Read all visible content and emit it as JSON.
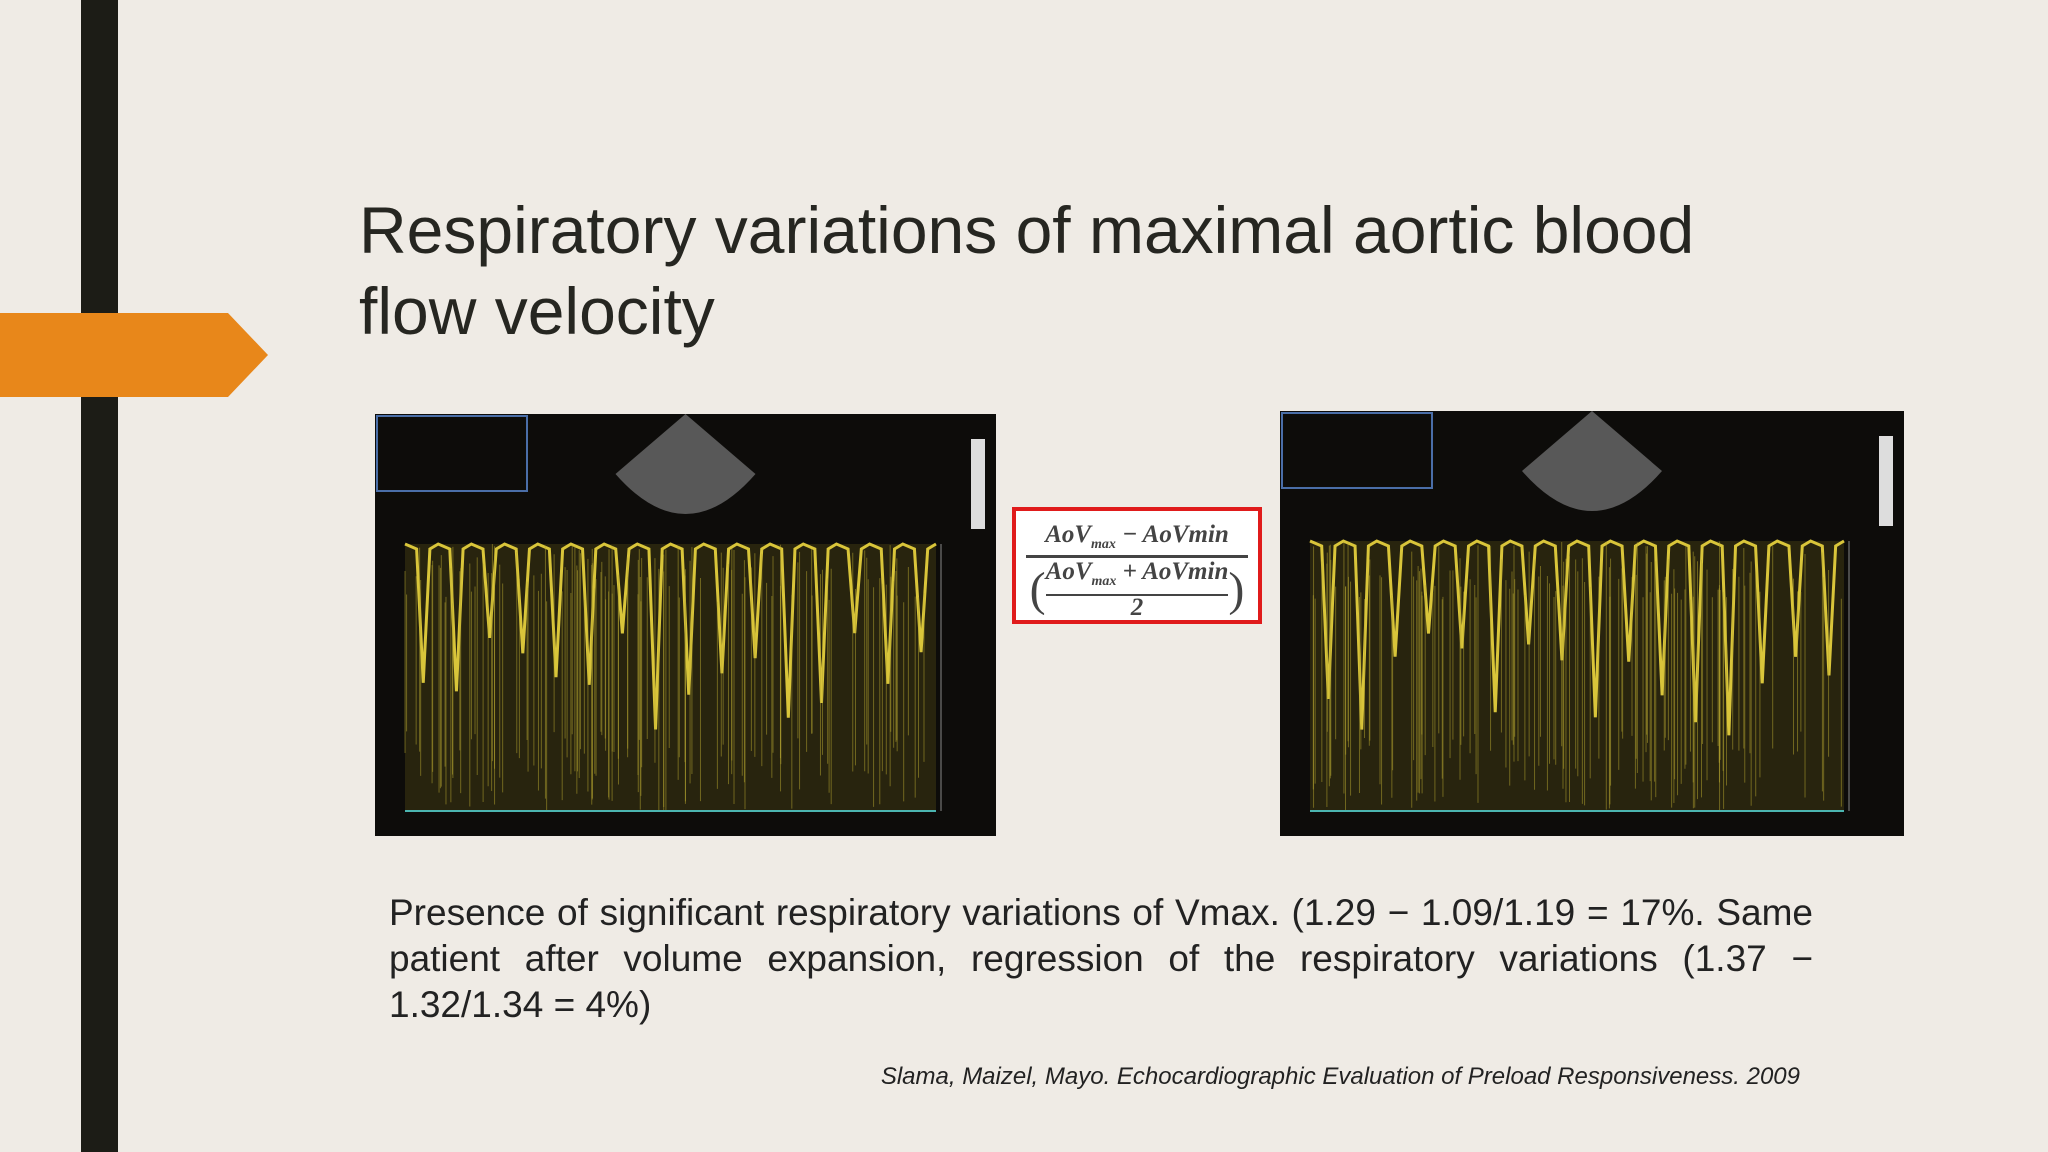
{
  "slide": {
    "title_lines": [
      "Respiratory variations of maximal aortic blood",
      "flow velocity"
    ],
    "formula": {
      "numerator": {
        "left": "AoV",
        "left_sub": "max",
        "right": "− AoVmin"
      },
      "denominator": {
        "left": "AoV",
        "left_sub": "max",
        "right": "+ AoVmin",
        "divisor": "2"
      }
    },
    "body": "Presence of significant respiratory variations of Vmax. (1.29 − 1.09/1.19 = 17%. Same patient after volume expansion, regression of the respiratory variations  (1.37 − 1.32/1.34 = 4%)",
    "citation": "Slama, Maizel, Mayo. Echocardiographic Evaluation of Preload Responsiveness. 2009"
  }
}
